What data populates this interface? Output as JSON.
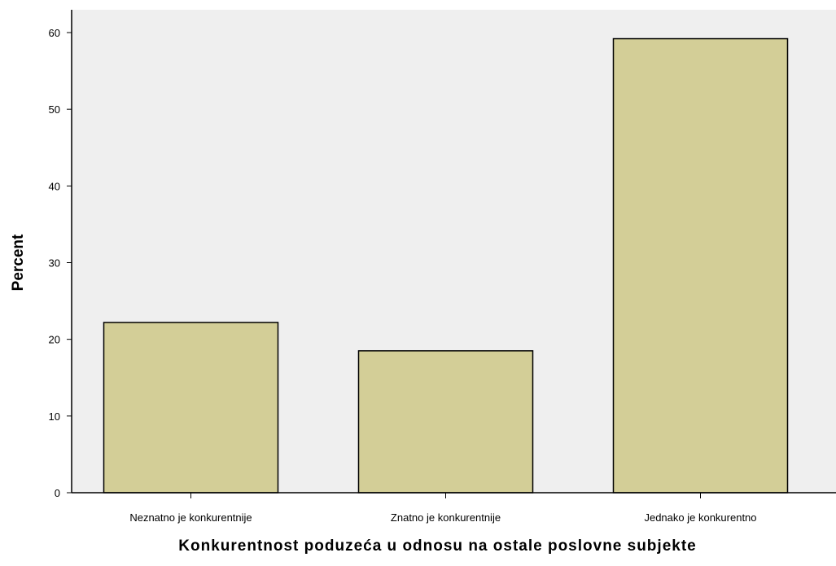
{
  "chart_data": {
    "type": "bar",
    "categories": [
      "Neznatno je konkurentnije",
      "Znatno je konkurentnije",
      "Jednako je konkurentno"
    ],
    "values": [
      22.2,
      18.5,
      59.2
    ],
    "xlabel": "Konkurentnost poduzeća u odnosu na ostale poslovne subjekte",
    "ylabel": "Percent",
    "ylim": [
      0,
      60
    ],
    "yticks": [
      0,
      10,
      20,
      30,
      40,
      50,
      60
    ],
    "grid": false,
    "legend": "none"
  },
  "colors": {
    "plot_background": "#efefef",
    "bar_fill": "#d3ce97",
    "bar_stroke": "#000000",
    "axis": "#000000"
  }
}
